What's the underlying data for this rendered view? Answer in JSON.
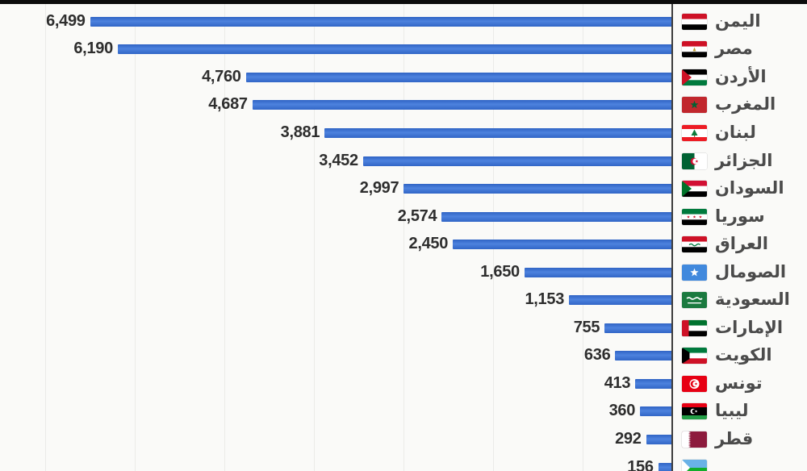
{
  "chart_data": {
    "type": "bar",
    "orientation": "horizontal",
    "direction": "rtl",
    "title": "",
    "xlabel": "",
    "ylabel": "",
    "xlim": [
      0,
      7500
    ],
    "gridline_interval": 1000,
    "grid": true,
    "legend": false,
    "bar_color": "#3a6fd0",
    "axis_color": "#3d3d3d",
    "gridline_color": "#ebebe8",
    "value_text_color": "#2e2e2e",
    "category_text_color": "#4b4b4b",
    "background_color": "#fafaf8",
    "categories": [
      "اليمن",
      "مصر",
      "الأردن",
      "المغرب",
      "لبنان",
      "الجزائر",
      "السودان",
      "سوريا",
      "العراق",
      "الصومال",
      "السعودية",
      "الإمارات",
      "الكويت",
      "تونس",
      "ليبيا",
      "قطر",
      ""
    ],
    "values": [
      6499,
      6190,
      4760,
      4687,
      3881,
      3452,
      2997,
      2574,
      2450,
      1650,
      1153,
      755,
      636,
      413,
      360,
      292,
      156
    ],
    "value_labels": [
      "6,499",
      "6,190",
      "4,760",
      "4,687",
      "3,881",
      "3,452",
      "2,997",
      "2,574",
      "2,450",
      "1,650",
      "1,153",
      "755",
      "636",
      "413",
      "360",
      "292",
      "156"
    ],
    "flags": [
      "yemen",
      "egypt",
      "jordan",
      "morocco",
      "lebanon",
      "algeria",
      "sudan",
      "syria",
      "iraq",
      "somalia",
      "saudi-arabia",
      "uae",
      "kuwait",
      "tunisia",
      "libya",
      "qatar",
      "partial"
    ]
  }
}
